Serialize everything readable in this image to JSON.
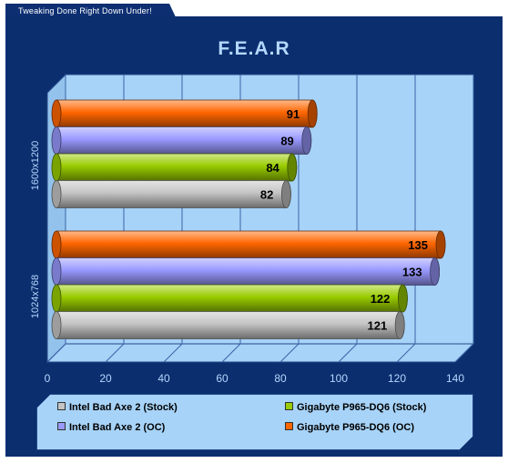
{
  "header": {
    "tab_label": "Tweaking Done Right Down Under!"
  },
  "chart_data": {
    "type": "bar",
    "orientation": "horizontal",
    "title": "F.E.A.R",
    "categories": [
      "1600x1200",
      "1024x768"
    ],
    "series": [
      {
        "name": "Intel Bad Axe 2 (Stock)",
        "color": "#c4c4c4",
        "values": [
          82,
          121
        ]
      },
      {
        "name": "Gigabyte P965-DQ6 (Stock)",
        "color": "#99cc00",
        "values": [
          84,
          122
        ]
      },
      {
        "name": "Intel Bad Axe 2 (OC)",
        "color": "#9999ff",
        "values": [
          89,
          133
        ]
      },
      {
        "name": "Gigabyte P965-DQ6 (OC)",
        "color": "#ff6600",
        "values": [
          91,
          135
        ]
      }
    ],
    "xlim": [
      0,
      140
    ],
    "xticks": [
      0,
      20,
      40,
      60,
      80,
      100,
      120,
      140
    ],
    "grid": true,
    "legend_position": "bottom"
  },
  "legend": {
    "items": [
      {
        "label": "Intel Bad Axe 2 (Stock)",
        "color": "#c4c4c4"
      },
      {
        "label": "Gigabyte P965-DQ6 (Stock)",
        "color": "#99cc00"
      },
      {
        "label": "Intel Bad Axe 2 (OC)",
        "color": "#9999ff"
      },
      {
        "label": "Gigabyte P965-DQ6 (OC)",
        "color": "#ff6600"
      }
    ]
  }
}
